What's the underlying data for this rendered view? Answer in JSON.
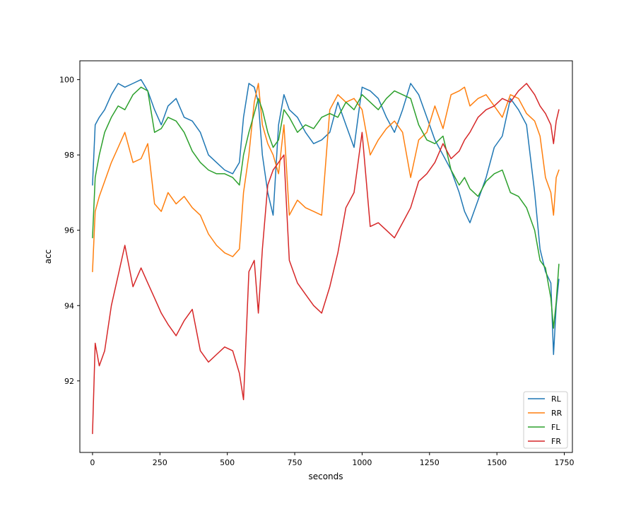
{
  "chart_data": {
    "type": "line",
    "title": "",
    "xlabel": "seconds",
    "ylabel": "acc",
    "xlim": [
      -47,
      1780
    ],
    "ylim": [
      90.1,
      100.5
    ],
    "xticks": [
      0,
      250,
      500,
      750,
      1000,
      1250,
      1500,
      1750
    ],
    "xtick_labels": [
      "0",
      "250",
      "500",
      "750",
      "1000",
      "1250",
      "1500",
      "1750"
    ],
    "yticks": [
      92,
      94,
      96,
      98,
      100
    ],
    "ytick_labels": [
      "92",
      "94",
      "96",
      "98",
      "100"
    ],
    "grid": false,
    "legend_position": "lower-right",
    "series": [
      {
        "name": "RL",
        "color": "#1f77b4",
        "x": [
          0,
          10,
          25,
          45,
          70,
          95,
          120,
          150,
          180,
          205,
          230,
          255,
          280,
          310,
          340,
          370,
          400,
          430,
          460,
          490,
          520,
          545,
          560,
          580,
          600,
          615,
          630,
          650,
          670,
          690,
          710,
          730,
          760,
          790,
          820,
          850,
          880,
          910,
          940,
          970,
          1000,
          1030,
          1060,
          1090,
          1120,
          1150,
          1180,
          1210,
          1240,
          1270,
          1300,
          1330,
          1360,
          1380,
          1400,
          1430,
          1460,
          1490,
          1520,
          1550,
          1580,
          1610,
          1640,
          1660,
          1680,
          1700,
          1710,
          1720,
          1730
        ],
        "y": [
          97.2,
          98.8,
          99.0,
          99.2,
          99.6,
          99.9,
          99.8,
          99.9,
          100.0,
          99.7,
          99.2,
          98.8,
          99.3,
          99.5,
          99.0,
          98.9,
          98.6,
          98.0,
          97.8,
          97.6,
          97.5,
          97.8,
          99.0,
          99.9,
          99.8,
          99.4,
          98.0,
          97.0,
          96.4,
          98.8,
          99.6,
          99.2,
          99.0,
          98.6,
          98.3,
          98.4,
          98.6,
          99.4,
          98.8,
          98.2,
          99.8,
          99.7,
          99.5,
          99.0,
          98.6,
          99.2,
          99.9,
          99.6,
          99.0,
          98.4,
          98.0,
          97.6,
          97.0,
          96.5,
          96.2,
          96.8,
          97.4,
          98.2,
          98.5,
          99.5,
          99.2,
          98.8,
          97.0,
          95.5,
          94.9,
          94.6,
          92.7,
          94.0,
          94.7
        ]
      },
      {
        "name": "RR",
        "color": "#ff7f0e",
        "x": [
          0,
          10,
          25,
          45,
          70,
          95,
          120,
          150,
          180,
          205,
          230,
          255,
          280,
          310,
          340,
          370,
          400,
          430,
          460,
          490,
          520,
          545,
          560,
          580,
          600,
          615,
          630,
          650,
          670,
          690,
          710,
          730,
          760,
          790,
          820,
          850,
          880,
          910,
          940,
          970,
          1000,
          1030,
          1060,
          1090,
          1120,
          1150,
          1180,
          1210,
          1240,
          1270,
          1300,
          1330,
          1360,
          1380,
          1400,
          1430,
          1460,
          1490,
          1520,
          1550,
          1580,
          1610,
          1640,
          1660,
          1680,
          1700,
          1710,
          1720,
          1730
        ],
        "y": [
          94.9,
          96.5,
          96.9,
          97.3,
          97.8,
          98.2,
          98.6,
          97.8,
          97.9,
          98.3,
          96.7,
          96.5,
          97.0,
          96.7,
          96.9,
          96.6,
          96.4,
          95.9,
          95.6,
          95.4,
          95.3,
          95.5,
          97.0,
          98.0,
          99.4,
          99.9,
          98.8,
          98.3,
          98.0,
          97.5,
          98.8,
          96.4,
          96.8,
          96.6,
          96.5,
          96.4,
          99.2,
          99.6,
          99.4,
          99.5,
          99.2,
          98.0,
          98.4,
          98.7,
          98.9,
          98.6,
          97.4,
          98.4,
          98.6,
          99.3,
          98.7,
          99.6,
          99.7,
          99.8,
          99.3,
          99.5,
          99.6,
          99.3,
          99.0,
          99.6,
          99.5,
          99.1,
          98.9,
          98.5,
          97.4,
          97.0,
          96.4,
          97.4,
          97.6
        ]
      },
      {
        "name": "FL",
        "color": "#2ca02c",
        "x": [
          0,
          10,
          25,
          45,
          70,
          95,
          120,
          150,
          180,
          205,
          230,
          255,
          280,
          310,
          340,
          370,
          400,
          430,
          460,
          490,
          520,
          545,
          560,
          580,
          600,
          615,
          630,
          650,
          670,
          690,
          710,
          730,
          760,
          790,
          820,
          850,
          880,
          910,
          940,
          970,
          1000,
          1030,
          1060,
          1090,
          1120,
          1150,
          1180,
          1210,
          1240,
          1270,
          1300,
          1330,
          1360,
          1380,
          1400,
          1430,
          1460,
          1490,
          1520,
          1550,
          1580,
          1610,
          1640,
          1660,
          1680,
          1700,
          1710,
          1720,
          1730
        ],
        "y": [
          95.8,
          97.4,
          98.0,
          98.6,
          99.0,
          99.3,
          99.2,
          99.6,
          99.8,
          99.7,
          98.6,
          98.7,
          99.0,
          98.9,
          98.6,
          98.1,
          97.8,
          97.6,
          97.5,
          97.5,
          97.4,
          97.2,
          98.0,
          98.6,
          99.1,
          99.5,
          99.2,
          98.6,
          98.2,
          98.4,
          99.2,
          99.0,
          98.6,
          98.8,
          98.7,
          99.0,
          99.1,
          99.0,
          99.4,
          99.2,
          99.6,
          99.4,
          99.2,
          99.5,
          99.7,
          99.6,
          99.5,
          98.8,
          98.4,
          98.3,
          98.5,
          97.6,
          97.2,
          97.4,
          97.1,
          96.9,
          97.3,
          97.5,
          97.6,
          97.0,
          96.9,
          96.6,
          96.0,
          95.2,
          95.0,
          94.2,
          93.4,
          94.1,
          95.1
        ]
      },
      {
        "name": "FR",
        "color": "#d62728",
        "x": [
          0,
          10,
          25,
          45,
          70,
          95,
          120,
          150,
          180,
          205,
          230,
          255,
          280,
          310,
          340,
          370,
          400,
          430,
          460,
          490,
          520,
          545,
          560,
          580,
          600,
          615,
          630,
          650,
          670,
          690,
          710,
          730,
          760,
          790,
          820,
          850,
          880,
          910,
          940,
          970,
          1000,
          1030,
          1060,
          1090,
          1120,
          1150,
          1180,
          1210,
          1240,
          1270,
          1300,
          1330,
          1360,
          1380,
          1400,
          1430,
          1460,
          1490,
          1520,
          1550,
          1580,
          1610,
          1640,
          1660,
          1680,
          1700,
          1710,
          1720,
          1730
        ],
        "y": [
          90.6,
          93.0,
          92.4,
          92.8,
          94.0,
          94.8,
          95.6,
          94.5,
          95.0,
          94.6,
          94.2,
          93.8,
          93.5,
          93.2,
          93.6,
          93.9,
          92.8,
          92.5,
          92.7,
          92.9,
          92.8,
          92.2,
          91.5,
          94.9,
          95.2,
          93.8,
          95.5,
          97.2,
          97.6,
          97.8,
          98.0,
          95.2,
          94.6,
          94.3,
          94.0,
          93.8,
          94.5,
          95.4,
          96.6,
          97.0,
          98.6,
          96.1,
          96.2,
          96.0,
          95.8,
          96.2,
          96.6,
          97.3,
          97.5,
          97.8,
          98.3,
          97.9,
          98.1,
          98.4,
          98.6,
          99.0,
          99.2,
          99.3,
          99.5,
          99.4,
          99.7,
          99.9,
          99.6,
          99.3,
          99.1,
          98.8,
          98.3,
          98.9,
          99.2
        ]
      }
    ]
  }
}
